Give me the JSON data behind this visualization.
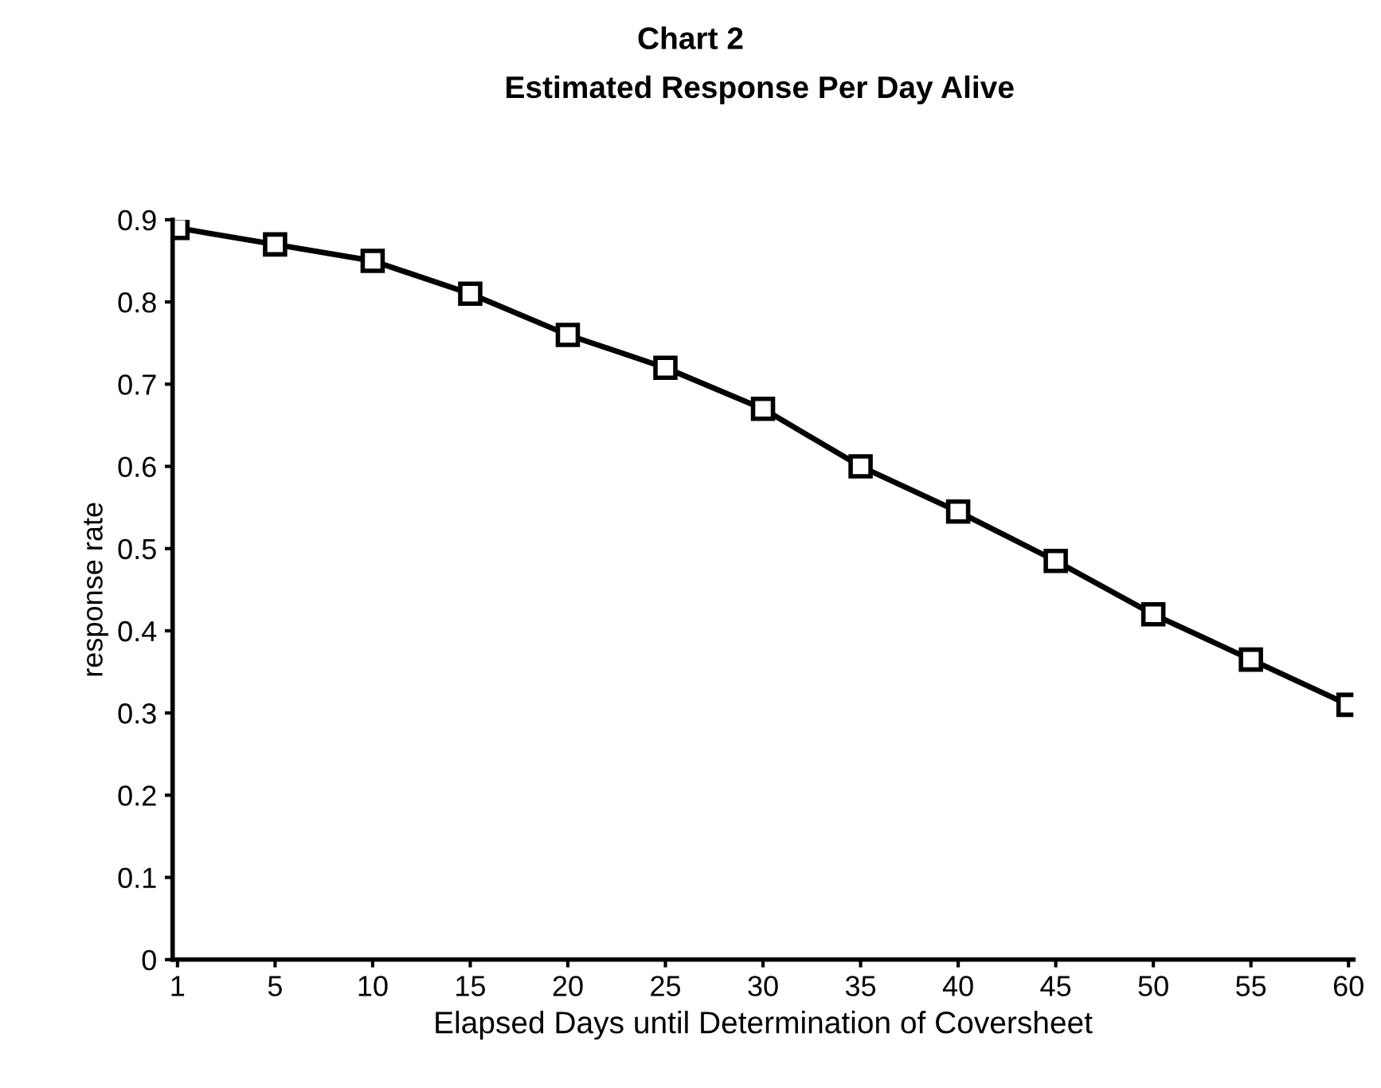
{
  "chart_data": {
    "type": "line",
    "title": "Chart 2",
    "subtitle": "Estimated Response Per Day Alive",
    "xlabel": "Elapsed Days until Determination of Coversheet",
    "ylabel": "response rate",
    "categories": [
      "1",
      "5",
      "10",
      "15",
      "20",
      "25",
      "30",
      "35",
      "40",
      "45",
      "50",
      "55",
      "60"
    ],
    "series": [
      {
        "color": "#000000",
        "values": [
          0.89,
          0.87,
          0.85,
          0.81,
          0.76,
          0.72,
          0.67,
          0.6,
          0.545,
          0.485,
          0.42,
          0.365,
          0.31
        ]
      }
    ],
    "ylim": [
      0,
      0.9
    ],
    "yticks": [
      0,
      0.1,
      0.2,
      0.3,
      0.4,
      0.5,
      0.6,
      0.7,
      0.8,
      0.9
    ],
    "grid": false,
    "legend": false,
    "marker": "square",
    "line_style": "solid"
  }
}
